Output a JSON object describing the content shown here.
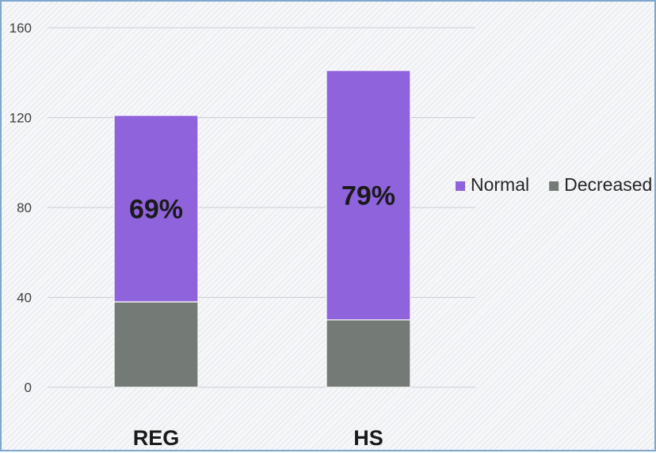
{
  "chart_data": {
    "type": "bar",
    "stacked": true,
    "categories": [
      "REG",
      "HS"
    ],
    "series": [
      {
        "name": "Decreased",
        "values": [
          38,
          30
        ],
        "color": "#747a76"
      },
      {
        "name": "Normal",
        "values": [
          83,
          111
        ],
        "color": "#8f63dc"
      }
    ],
    "data_labels": [
      "69%",
      "79%"
    ],
    "ylim": [
      0,
      160
    ],
    "yticks": [
      0,
      40,
      80,
      120,
      160
    ],
    "legend": {
      "position": "right",
      "order": [
        "Normal",
        "Decreased"
      ]
    },
    "grid": true,
    "title": "",
    "xlabel": "",
    "ylabel": ""
  }
}
